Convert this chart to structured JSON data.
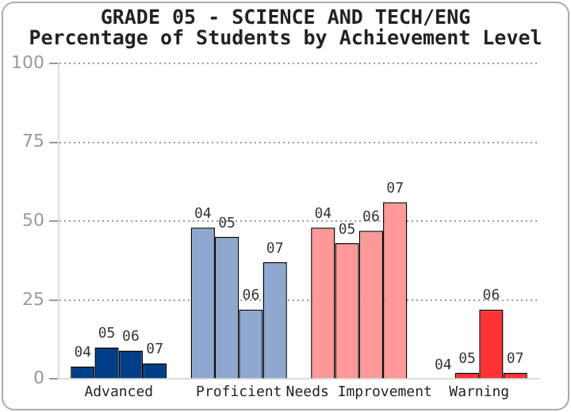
{
  "chart_data": {
    "type": "bar",
    "title": "GRADE 05 - SCIENCE AND TECH/ENG",
    "subtitle": "Percentage of Students by Achievement Level",
    "categories": [
      "Advanced",
      "Proficient",
      "Needs Improvement",
      "Warning"
    ],
    "series": [
      {
        "name": "04",
        "colors": [
          "#003f87",
          "#8fa8d0",
          "#ff9999",
          "#ff3333"
        ],
        "values": [
          4,
          48,
          48,
          0
        ]
      },
      {
        "name": "05",
        "colors": [
          "#003f87",
          "#8fa8d0",
          "#ff9999",
          "#ff3333"
        ],
        "values": [
          10,
          45,
          43,
          2
        ]
      },
      {
        "name": "06",
        "colors": [
          "#003f87",
          "#8fa8d0",
          "#ff9999",
          "#ff3333"
        ],
        "values": [
          9,
          22,
          47,
          22
        ]
      },
      {
        "name": "07",
        "colors": [
          "#003f87",
          "#8fa8d0",
          "#ff9999",
          "#ff3333"
        ],
        "values": [
          5,
          37,
          56,
          2
        ]
      }
    ],
    "ylim": [
      0,
      100
    ],
    "yticks": [
      0,
      25,
      50,
      75,
      100
    ],
    "grid": "y",
    "legend": false
  }
}
